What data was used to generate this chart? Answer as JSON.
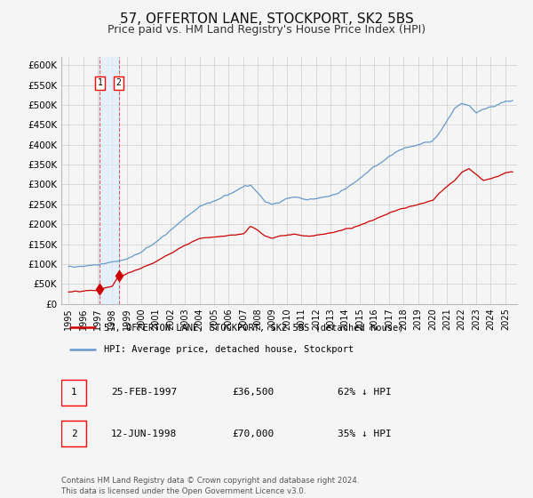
{
  "title": "57, OFFERTON LANE, STOCKPORT, SK2 5BS",
  "subtitle": "Price paid vs. HM Land Registry's House Price Index (HPI)",
  "title_fontsize": 11,
  "subtitle_fontsize": 9,
  "hpi_color": "#6699cc",
  "price_color": "#cc0000",
  "background_color": "#f5f5f5",
  "plot_bg_color": "#f5f5f5",
  "grid_color": "#cccccc",
  "ylim": [
    0,
    620000
  ],
  "yticks": [
    0,
    50000,
    100000,
    150000,
    200000,
    250000,
    300000,
    350000,
    400000,
    450000,
    500000,
    550000,
    600000
  ],
  "ytick_labels": [
    "£0",
    "£50K",
    "£100K",
    "£150K",
    "£200K",
    "£250K",
    "£300K",
    "£350K",
    "£400K",
    "£450K",
    "£500K",
    "£550K",
    "£600K"
  ],
  "xlim_start": 1994.5,
  "xlim_end": 2025.8,
  "xticks": [
    1995,
    1996,
    1997,
    1998,
    1999,
    2000,
    2001,
    2002,
    2003,
    2004,
    2005,
    2006,
    2007,
    2008,
    2009,
    2010,
    2011,
    2012,
    2013,
    2014,
    2015,
    2016,
    2017,
    2018,
    2019,
    2020,
    2021,
    2022,
    2023,
    2024,
    2025
  ],
  "sale1_date": 1997.145,
  "sale1_price": 36500,
  "sale2_date": 1998.44,
  "sale2_price": 70000,
  "legend_entry1": "57, OFFERTON LANE, STOCKPORT, SK2 5BS (detached house)",
  "legend_entry2": "HPI: Average price, detached house, Stockport",
  "table_row1_num": "1",
  "table_row1_date": "25-FEB-1997",
  "table_row1_price": "£36,500",
  "table_row1_hpi": "62% ↓ HPI",
  "table_row2_num": "2",
  "table_row2_date": "12-JUN-1998",
  "table_row2_price": "£70,000",
  "table_row2_hpi": "35% ↓ HPI",
  "footer": "Contains HM Land Registry data © Crown copyright and database right 2024.\nThis data is licensed under the Open Government Licence v3.0."
}
